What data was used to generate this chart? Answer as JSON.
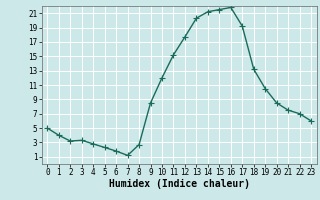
{
  "x": [
    0,
    1,
    2,
    3,
    4,
    5,
    6,
    7,
    8,
    9,
    10,
    11,
    12,
    13,
    14,
    15,
    16,
    17,
    18,
    19,
    20,
    21,
    22,
    23
  ],
  "y": [
    5,
    4,
    3.2,
    3.3,
    2.8,
    2.3,
    1.8,
    1.2,
    2.7,
    8.5,
    12.0,
    15.2,
    17.7,
    20.3,
    21.2,
    21.5,
    21.8,
    19.2,
    13.2,
    10.5,
    8.5,
    7.5,
    7.0,
    6.0
  ],
  "line_color": "#1a6b5a",
  "marker": "+",
  "marker_size": 4,
  "bg_color": "#cce8e8",
  "grid_color": "#ffffff",
  "xlabel": "Humidex (Indice chaleur)",
  "xlim": [
    -0.5,
    23.5
  ],
  "ylim": [
    0,
    22
  ],
  "yticks": [
    1,
    3,
    5,
    7,
    9,
    11,
    13,
    15,
    17,
    19,
    21
  ],
  "xticks": [
    0,
    1,
    2,
    3,
    4,
    5,
    6,
    7,
    8,
    9,
    10,
    11,
    12,
    13,
    14,
    15,
    16,
    17,
    18,
    19,
    20,
    21,
    22,
    23
  ],
  "tick_fontsize": 5.5,
  "xlabel_fontsize": 7,
  "linewidth": 1.0
}
